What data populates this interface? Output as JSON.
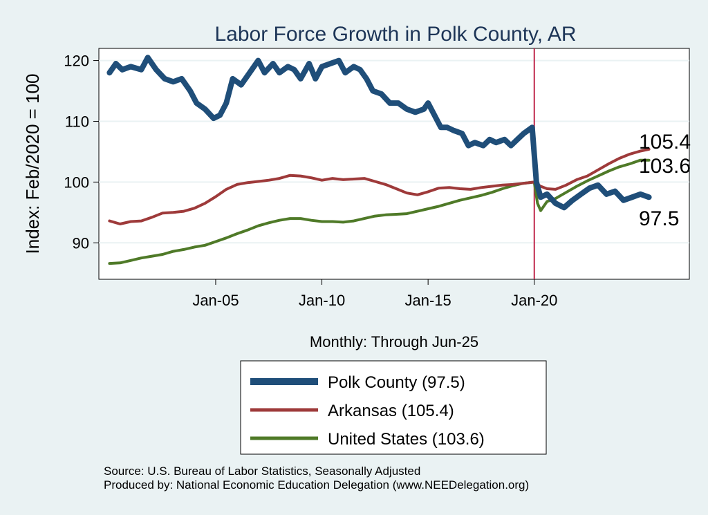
{
  "chart_data": {
    "type": "line",
    "title": "Labor Force Growth in Polk  County, AR",
    "ylabel": "Index: Feb/2020 = 100",
    "xlabel": "Monthly: Through Jun-25",
    "ylim": [
      84,
      122
    ],
    "xlim": [
      1999.5,
      2027.3
    ],
    "yticks": [
      90,
      100,
      110,
      120
    ],
    "xticks": [
      {
        "year": 2005,
        "label": "Jan-05"
      },
      {
        "year": 2010,
        "label": "Jan-10"
      },
      {
        "year": 2015,
        "label": "Jan-15"
      },
      {
        "year": 2020,
        "label": "Jan-20"
      }
    ],
    "reference_line": {
      "year": 2020.0,
      "color": "#c0284c"
    },
    "series": [
      {
        "name": "Polk  County",
        "legend": "Polk  County (97.5)",
        "end_label": "97.5",
        "color": "#1f4e79",
        "points": [
          [
            2000.0,
            118
          ],
          [
            2000.3,
            119.5
          ],
          [
            2000.6,
            118.5
          ],
          [
            2001.0,
            119
          ],
          [
            2001.5,
            118.5
          ],
          [
            2001.8,
            120.5
          ],
          [
            2002.2,
            118.5
          ],
          [
            2002.6,
            117
          ],
          [
            2003.0,
            116.5
          ],
          [
            2003.4,
            117
          ],
          [
            2003.8,
            115
          ],
          [
            2004.1,
            113
          ],
          [
            2004.5,
            112
          ],
          [
            2004.9,
            110.5
          ],
          [
            2005.2,
            111
          ],
          [
            2005.5,
            113
          ],
          [
            2005.8,
            117
          ],
          [
            2006.2,
            116
          ],
          [
            2006.6,
            118
          ],
          [
            2007.0,
            120
          ],
          [
            2007.3,
            118
          ],
          [
            2007.7,
            119.5
          ],
          [
            2008.0,
            118
          ],
          [
            2008.4,
            119
          ],
          [
            2008.7,
            118.5
          ],
          [
            2009.0,
            117
          ],
          [
            2009.4,
            119.5
          ],
          [
            2009.7,
            117
          ],
          [
            2010.0,
            119
          ],
          [
            2010.4,
            119.5
          ],
          [
            2010.8,
            120
          ],
          [
            2011.1,
            118
          ],
          [
            2011.5,
            119
          ],
          [
            2011.8,
            118.5
          ],
          [
            2012.1,
            117
          ],
          [
            2012.4,
            115
          ],
          [
            2012.8,
            114.5
          ],
          [
            2013.2,
            113
          ],
          [
            2013.6,
            113
          ],
          [
            2014.0,
            112
          ],
          [
            2014.4,
            111.5
          ],
          [
            2014.8,
            112
          ],
          [
            2015.0,
            113
          ],
          [
            2015.3,
            111
          ],
          [
            2015.6,
            109
          ],
          [
            2015.9,
            109
          ],
          [
            2016.2,
            108.5
          ],
          [
            2016.6,
            108
          ],
          [
            2016.9,
            106
          ],
          [
            2017.2,
            106.5
          ],
          [
            2017.6,
            106
          ],
          [
            2017.9,
            107
          ],
          [
            2018.2,
            106.5
          ],
          [
            2018.6,
            107
          ],
          [
            2018.9,
            106
          ],
          [
            2019.2,
            107
          ],
          [
            2019.5,
            108
          ],
          [
            2019.9,
            109
          ],
          [
            2020.1,
            100
          ],
          [
            2020.3,
            97.5
          ],
          [
            2020.6,
            98
          ],
          [
            2021.0,
            96.5
          ],
          [
            2021.4,
            95.8
          ],
          [
            2021.8,
            97
          ],
          [
            2022.2,
            98
          ],
          [
            2022.6,
            99
          ],
          [
            2023.0,
            99.5
          ],
          [
            2023.4,
            98
          ],
          [
            2023.8,
            98.5
          ],
          [
            2024.2,
            97
          ],
          [
            2024.6,
            97.5
          ],
          [
            2025.0,
            98
          ],
          [
            2025.4,
            97.5
          ]
        ]
      },
      {
        "name": "Arkansas",
        "legend": "Arkansas (105.4)",
        "end_label": "105.4",
        "color": "#9e3a3a",
        "points": [
          [
            2000.0,
            93.6
          ],
          [
            2000.5,
            93.1
          ],
          [
            2001.0,
            93.5
          ],
          [
            2001.5,
            93.6
          ],
          [
            2002.0,
            94.2
          ],
          [
            2002.5,
            94.9
          ],
          [
            2003.0,
            95.0
          ],
          [
            2003.5,
            95.2
          ],
          [
            2004.0,
            95.7
          ],
          [
            2004.5,
            96.5
          ],
          [
            2005.0,
            97.6
          ],
          [
            2005.5,
            98.8
          ],
          [
            2006.0,
            99.6
          ],
          [
            2006.5,
            99.9
          ],
          [
            2007.0,
            100.1
          ],
          [
            2007.5,
            100.3
          ],
          [
            2008.0,
            100.6
          ],
          [
            2008.5,
            101.1
          ],
          [
            2009.0,
            101.0
          ],
          [
            2009.5,
            100.7
          ],
          [
            2010.0,
            100.3
          ],
          [
            2010.5,
            100.6
          ],
          [
            2011.0,
            100.4
          ],
          [
            2011.5,
            100.5
          ],
          [
            2012.0,
            100.6
          ],
          [
            2012.5,
            100.1
          ],
          [
            2013.0,
            99.6
          ],
          [
            2013.5,
            98.9
          ],
          [
            2014.0,
            98.2
          ],
          [
            2014.5,
            97.9
          ],
          [
            2015.0,
            98.4
          ],
          [
            2015.5,
            99.0
          ],
          [
            2016.0,
            99.1
          ],
          [
            2016.5,
            98.9
          ],
          [
            2017.0,
            98.8
          ],
          [
            2017.5,
            99.1
          ],
          [
            2018.0,
            99.3
          ],
          [
            2018.5,
            99.5
          ],
          [
            2019.0,
            99.6
          ],
          [
            2019.5,
            99.8
          ],
          [
            2020.0,
            100.0
          ],
          [
            2020.3,
            99.3
          ],
          [
            2020.6,
            98.9
          ],
          [
            2021.0,
            98.8
          ],
          [
            2021.5,
            99.5
          ],
          [
            2022.0,
            100.4
          ],
          [
            2022.5,
            101.0
          ],
          [
            2023.0,
            102.0
          ],
          [
            2023.5,
            103.0
          ],
          [
            2024.0,
            103.9
          ],
          [
            2024.5,
            104.6
          ],
          [
            2025.0,
            105.1
          ],
          [
            2025.4,
            105.4
          ]
        ]
      },
      {
        "name": "United States",
        "legend": "United States (103.6)",
        "end_label": "103.6",
        "color": "#4f7a28",
        "points": [
          [
            2000.0,
            86.6
          ],
          [
            2000.5,
            86.7
          ],
          [
            2001.0,
            87.1
          ],
          [
            2001.5,
            87.5
          ],
          [
            2002.0,
            87.8
          ],
          [
            2002.5,
            88.1
          ],
          [
            2003.0,
            88.6
          ],
          [
            2003.5,
            88.9
          ],
          [
            2004.0,
            89.3
          ],
          [
            2004.5,
            89.6
          ],
          [
            2005.0,
            90.2
          ],
          [
            2005.5,
            90.8
          ],
          [
            2006.0,
            91.5
          ],
          [
            2006.5,
            92.1
          ],
          [
            2007.0,
            92.8
          ],
          [
            2007.5,
            93.3
          ],
          [
            2008.0,
            93.7
          ],
          [
            2008.5,
            94.0
          ],
          [
            2009.0,
            94.0
          ],
          [
            2009.5,
            93.7
          ],
          [
            2010.0,
            93.5
          ],
          [
            2010.5,
            93.5
          ],
          [
            2011.0,
            93.4
          ],
          [
            2011.5,
            93.6
          ],
          [
            2012.0,
            94.0
          ],
          [
            2012.5,
            94.4
          ],
          [
            2013.0,
            94.6
          ],
          [
            2013.5,
            94.7
          ],
          [
            2014.0,
            94.8
          ],
          [
            2014.5,
            95.2
          ],
          [
            2015.0,
            95.6
          ],
          [
            2015.5,
            96.0
          ],
          [
            2016.0,
            96.5
          ],
          [
            2016.5,
            97.0
          ],
          [
            2017.0,
            97.4
          ],
          [
            2017.5,
            97.8
          ],
          [
            2018.0,
            98.3
          ],
          [
            2018.5,
            98.9
          ],
          [
            2019.0,
            99.4
          ],
          [
            2019.5,
            99.8
          ],
          [
            2020.0,
            100.0
          ],
          [
            2020.15,
            96.5
          ],
          [
            2020.3,
            95.3
          ],
          [
            2020.6,
            96.8
          ],
          [
            2021.0,
            97.3
          ],
          [
            2021.5,
            98.3
          ],
          [
            2022.0,
            99.3
          ],
          [
            2022.5,
            100.2
          ],
          [
            2023.0,
            101.0
          ],
          [
            2023.5,
            101.8
          ],
          [
            2024.0,
            102.5
          ],
          [
            2024.5,
            103.0
          ],
          [
            2025.0,
            103.6
          ],
          [
            2025.4,
            103.6
          ]
        ]
      }
    ],
    "legend_placement": "bottom"
  },
  "source_line": "Source: U.S. Bureau of Labor Statistics, Seasonally Adjusted",
  "produced_line": "Produced by: National Economic Education Delegation (www.NEEDelegation.org)"
}
